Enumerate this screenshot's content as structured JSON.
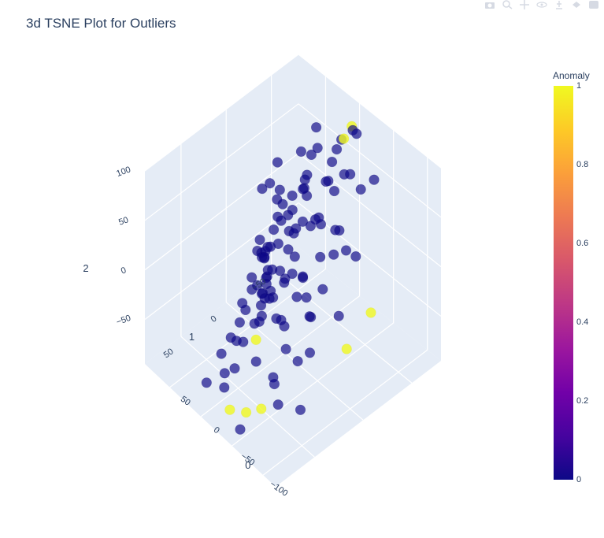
{
  "title": "3d TSNE Plot for Outliers",
  "modebar": [
    "camera-icon",
    "zoom-icon",
    "pan-icon",
    "orbit-icon",
    "turntable-icon",
    "reset-camera-icon",
    "plotly-logo-icon"
  ],
  "colors": {
    "scene_bg": "#e5ecf6",
    "grid": "#ffffff",
    "text": "#2a3f5f",
    "normal": "#0d0887",
    "anomaly": "#f0f921"
  },
  "chart_data": {
    "type": "scatter",
    "subtype": "scatter3d",
    "title": "3d TSNE Plot for Outliers",
    "axes": {
      "x": {
        "label": "0",
        "ticks": [
          "−100",
          "−50",
          "0",
          "50"
        ],
        "range": [
          -120,
          90
        ]
      },
      "y": {
        "label": "1",
        "ticks": [
          "−50",
          "0",
          "50"
        ],
        "range": [
          -80,
          90
        ]
      },
      "z": {
        "label": "2",
        "ticks": [
          "−50",
          "0",
          "50",
          "100"
        ],
        "range": [
          -95,
          100
        ]
      }
    },
    "colorbar": {
      "title": "Anomaly",
      "ticks": [
        "0",
        "0.2",
        "0.4",
        "0.6",
        "0.8",
        "1"
      ],
      "range": [
        0,
        1
      ],
      "colorscale": [
        "#0d0887",
        "#46039f",
        "#7201a8",
        "#9c179e",
        "#bd3786",
        "#d8576b",
        "#ed7953",
        "#fb9f3a",
        "#fdca26",
        "#f0f921"
      ]
    },
    "grid": true,
    "points": [
      {
        "x": -22,
        "y": -6,
        "z": 88,
        "a": 0
      },
      {
        "x": -42,
        "y": -40,
        "z": 80,
        "a": 0
      },
      {
        "x": -5,
        "y": -52,
        "z": 76,
        "a": 0
      },
      {
        "x": -24,
        "y": -27,
        "z": 72,
        "a": 0
      },
      {
        "x": -38,
        "y": -26,
        "z": 71,
        "a": 0
      },
      {
        "x": -55,
        "y": -56,
        "z": 70,
        "a": 0
      },
      {
        "x": -48,
        "y": -47,
        "z": 63,
        "a": 0
      },
      {
        "x": 3,
        "y": -79,
        "z": 68,
        "a": 0
      },
      {
        "x": 38,
        "y": -61,
        "z": 68,
        "a": 0
      },
      {
        "x": 32,
        "y": 2,
        "z": 54,
        "a": 0
      },
      {
        "x": -12,
        "y": -38,
        "z": 58,
        "a": 0
      },
      {
        "x": -41,
        "y": -4,
        "z": 60,
        "a": 0
      },
      {
        "x": 8,
        "y": -25,
        "z": 48,
        "a": 0
      },
      {
        "x": -16,
        "y": 23,
        "z": 55,
        "a": 0
      },
      {
        "x": 40,
        "y": -12,
        "z": 45,
        "a": 0
      },
      {
        "x": -63,
        "y": -14,
        "z": 54,
        "a": 0
      },
      {
        "x": -82,
        "y": -8,
        "z": 49,
        "a": 0
      },
      {
        "x": 15,
        "y": -74,
        "z": 60,
        "a": 1
      },
      {
        "x": -66,
        "y": 8,
        "z": 45,
        "a": 0
      },
      {
        "x": -28,
        "y": 41,
        "z": 47,
        "a": 0
      },
      {
        "x": -50,
        "y": 24,
        "z": 48,
        "a": 0
      },
      {
        "x": 26,
        "y": -47,
        "z": 57,
        "a": 0
      },
      {
        "x": 10,
        "y": -80,
        "z": 67,
        "a": 0
      },
      {
        "x": 21,
        "y": -87,
        "z": 60,
        "a": 1
      },
      {
        "x": -91,
        "y": -12,
        "z": 45,
        "a": 0
      },
      {
        "x": -70,
        "y": 29,
        "z": 43,
        "a": 0
      },
      {
        "x": -9,
        "y": 33,
        "z": 48,
        "a": 0
      },
      {
        "x": -10,
        "y": 11,
        "z": 52,
        "a": 0
      },
      {
        "x": -27,
        "y": 7,
        "z": 51,
        "a": 0
      },
      {
        "x": -36,
        "y": -11,
        "z": 54,
        "a": 0
      },
      {
        "x": 9,
        "y": -57,
        "z": 52,
        "a": 0
      },
      {
        "x": 28,
        "y": -81,
        "z": 47,
        "a": 0
      },
      {
        "x": -63,
        "y": -8,
        "z": 34,
        "a": 0
      },
      {
        "x": -18,
        "y": 3,
        "z": 38,
        "a": 0
      },
      {
        "x": 7,
        "y": -13,
        "z": 36,
        "a": 0
      },
      {
        "x": 55,
        "y": -57,
        "z": 37,
        "a": 0
      },
      {
        "x": -86,
        "y": 19,
        "z": 32,
        "a": 0
      },
      {
        "x": -36,
        "y": 30,
        "z": 30,
        "a": 0
      },
      {
        "x": -5,
        "y": -1,
        "z": 30,
        "a": 0
      },
      {
        "x": 43,
        "y": -66,
        "z": 41,
        "a": 0
      },
      {
        "x": 50,
        "y": -30,
        "z": 20,
        "a": 0
      },
      {
        "x": -18,
        "y": 9,
        "z": 26,
        "a": 0
      },
      {
        "x": 2,
        "y": 14,
        "z": 21,
        "a": 0
      },
      {
        "x": -83,
        "y": 34,
        "z": 33,
        "a": 0
      },
      {
        "x": -52,
        "y": 57,
        "z": 31,
        "a": 0
      },
      {
        "x": -3,
        "y": -17,
        "z": 27,
        "a": 0
      },
      {
        "x": 26,
        "y": -16,
        "z": 29,
        "a": 0
      },
      {
        "x": 26,
        "y": -42,
        "z": 19,
        "a": 0
      },
      {
        "x": -37,
        "y": 50,
        "z": 22,
        "a": 0
      },
      {
        "x": -24,
        "y": 46,
        "z": 20,
        "a": 0
      },
      {
        "x": -49,
        "y": 50,
        "z": 24,
        "a": 0
      },
      {
        "x": 43,
        "y": -22,
        "z": 20,
        "a": 0
      },
      {
        "x": -18,
        "y": 26,
        "z": 18,
        "a": 0
      },
      {
        "x": 3,
        "y": 5,
        "z": 17,
        "a": 0
      },
      {
        "x": 38,
        "y": -51,
        "z": 27,
        "a": 0
      },
      {
        "x": 74,
        "y": -45,
        "z": 24,
        "a": 0
      },
      {
        "x": -91,
        "y": 36,
        "z": 20,
        "a": 0
      },
      {
        "x": -45,
        "y": 12,
        "z": 15,
        "a": 0
      },
      {
        "x": -38,
        "y": 27,
        "z": 17,
        "a": 0
      },
      {
        "x": 10,
        "y": 14,
        "z": 12,
        "a": 0
      },
      {
        "x": 28,
        "y": -12,
        "z": 18,
        "a": 0
      },
      {
        "x": 15,
        "y": 8,
        "z": 9,
        "a": 0
      },
      {
        "x": -111,
        "y": -14,
        "z": -2,
        "a": 1
      },
      {
        "x": -93,
        "y": 7,
        "z": 0,
        "a": 0
      },
      {
        "x": -56,
        "y": 39,
        "z": -8,
        "a": 0
      },
      {
        "x": -27,
        "y": 44,
        "z": 0,
        "a": 0
      },
      {
        "x": -19,
        "y": 13,
        "z": 0,
        "a": 0
      },
      {
        "x": 9,
        "y": 12,
        "z": -8,
        "a": 0
      },
      {
        "x": 39,
        "y": -31,
        "z": 0,
        "a": 0
      },
      {
        "x": -72,
        "y": 22,
        "z": -2,
        "a": 0
      },
      {
        "x": -31,
        "y": 34,
        "z": 3,
        "a": 0
      },
      {
        "x": -31,
        "y": 46,
        "z": -7,
        "a": 0
      },
      {
        "x": -6,
        "y": 24,
        "z": -5,
        "a": 0
      },
      {
        "x": -18,
        "y": 70,
        "z": -19,
        "a": 0
      },
      {
        "x": 18,
        "y": 23,
        "z": -25,
        "a": 0
      },
      {
        "x": 33,
        "y": -1,
        "z": -19,
        "a": 0
      },
      {
        "x": -90,
        "y": 35,
        "z": -18,
        "a": 0
      },
      {
        "x": -111,
        "y": 11,
        "z": -20,
        "a": 1
      },
      {
        "x": -81,
        "y": 66,
        "z": -32,
        "a": 0
      },
      {
        "x": -80,
        "y": 41,
        "z": -28,
        "a": 0
      },
      {
        "x": -42,
        "y": 38,
        "z": -9,
        "a": 0
      },
      {
        "x": -25,
        "y": 48,
        "z": -33,
        "a": 1
      },
      {
        "x": -14,
        "y": 37,
        "z": -29,
        "a": 0
      },
      {
        "x": 1,
        "y": 23,
        "z": -19,
        "a": 0
      },
      {
        "x": 31,
        "y": 3,
        "z": -14,
        "a": 0
      },
      {
        "x": 43,
        "y": -5,
        "z": -22,
        "a": 0
      },
      {
        "x": -2,
        "y": 34,
        "z": -40,
        "a": 0
      },
      {
        "x": -55,
        "y": 68,
        "z": -23,
        "a": 0
      },
      {
        "x": -33,
        "y": 76,
        "z": -37,
        "a": 0
      },
      {
        "x": 22,
        "y": 0,
        "z": -45,
        "a": 0
      },
      {
        "x": 16,
        "y": 9,
        "z": -22,
        "a": 0
      },
      {
        "x": 59,
        "y": -12,
        "z": -34,
        "a": 0
      },
      {
        "x": -80,
        "y": 79,
        "z": -48,
        "a": 1
      },
      {
        "x": -110,
        "y": 58,
        "z": -47,
        "a": 0
      },
      {
        "x": -65,
        "y": 85,
        "z": -56,
        "a": 1
      },
      {
        "x": -48,
        "y": 91,
        "z": -59,
        "a": 1
      },
      {
        "x": -36,
        "y": 89,
        "z": -45,
        "a": 0
      },
      {
        "x": 0,
        "y": 84,
        "z": -65,
        "a": 0
      },
      {
        "x": 5,
        "y": 45,
        "z": -35,
        "a": 0
      },
      {
        "x": 22,
        "y": 27,
        "z": -45,
        "a": 0
      },
      {
        "x": 40,
        "y": -9,
        "z": -47,
        "a": 0
      },
      {
        "x": -60,
        "y": 88,
        "z": -74,
        "a": 0
      },
      {
        "x": -20,
        "y": 78,
        "z": -48,
        "a": 0
      },
      {
        "x": 12,
        "y": 60,
        "z": -60,
        "a": 0
      },
      {
        "x": -90,
        "y": 68,
        "z": -46,
        "a": 0
      },
      {
        "x": -70,
        "y": 60,
        "z": -36,
        "a": 0
      },
      {
        "x": -12,
        "y": 60,
        "z": -33,
        "a": 0
      },
      {
        "x": -30,
        "y": 65,
        "z": -20,
        "a": 0
      },
      {
        "x": 2,
        "y": -40,
        "z": 5,
        "a": 0
      },
      {
        "x": -25,
        "y": -10,
        "z": 40,
        "a": 0
      },
      {
        "x": 20,
        "y": -35,
        "z": 35,
        "a": 0
      },
      {
        "x": 45,
        "y": -40,
        "z": 10,
        "a": 0
      },
      {
        "x": -55,
        "y": 30,
        "z": 38,
        "a": 0
      },
      {
        "x": -70,
        "y": -5,
        "z": 65,
        "a": 0
      },
      {
        "x": -5,
        "y": -60,
        "z": 45,
        "a": 0
      },
      {
        "x": -40,
        "y": 15,
        "z": -5,
        "a": 0
      },
      {
        "x": -2,
        "y": 47,
        "z": -10,
        "a": 0
      },
      {
        "x": 8,
        "y": 30,
        "z": -2,
        "a": 0
      },
      {
        "x": -60,
        "y": 45,
        "z": 5,
        "a": 0
      },
      {
        "x": -75,
        "y": 50,
        "z": -12,
        "a": 0
      }
    ]
  }
}
